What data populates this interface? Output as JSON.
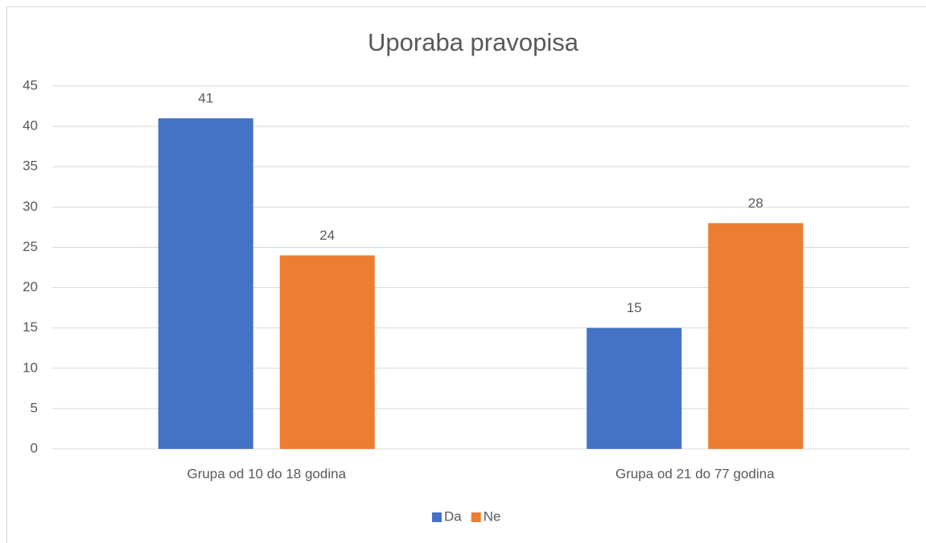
{
  "chart_data": {
    "type": "bar",
    "title": "Uporaba pravopisa",
    "categories": [
      "Grupa od 10 do 18 godina",
      "Grupa od 21 do 77 godina"
    ],
    "series": [
      {
        "name": "Da",
        "color": "#4472c4",
        "values": [
          41,
          15
        ]
      },
      {
        "name": "Ne",
        "color": "#ed7d31",
        "values": [
          24,
          28
        ]
      }
    ],
    "ylim": [
      0,
      45
    ],
    "yticks": [
      0,
      5,
      10,
      15,
      20,
      25,
      30,
      35,
      40,
      45
    ],
    "grid": true,
    "legend": "bottom"
  }
}
